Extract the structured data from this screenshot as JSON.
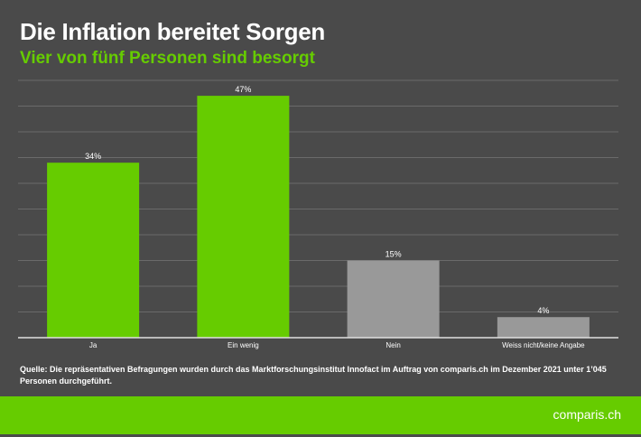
{
  "chart_data": {
    "type": "bar",
    "title": "Die Inflation bereitet Sorgen",
    "subtitle": "Vier von fünf Personen sind besorgt",
    "categories": [
      "Ja",
      "Ein wenig",
      "Nein",
      "Weiss nicht/keine Angabe"
    ],
    "values": [
      34,
      47,
      15,
      4
    ],
    "data_labels": [
      "34%",
      "47%",
      "15%",
      "4%"
    ],
    "bar_colors": [
      "#66cc00",
      "#66cc00",
      "#999999",
      "#999999"
    ],
    "xlabel": "",
    "ylabel": "",
    "ylim": [
      0,
      50
    ],
    "grid_step": 5,
    "grid": true,
    "y_tick_labels_shown": false
  },
  "source_note": "Quelle: Die repräsentativen Befragungen wurden durch das Marktforschungsinstitut Innofact im Auftrag von comparis.ch im Dezember 2021 unter 1’045 Personen durchgeführt.",
  "logo": "comparis.ch",
  "colors": {
    "background": "#4a4a4a",
    "accent": "#66cc00",
    "grid": "#6a6a6a"
  }
}
